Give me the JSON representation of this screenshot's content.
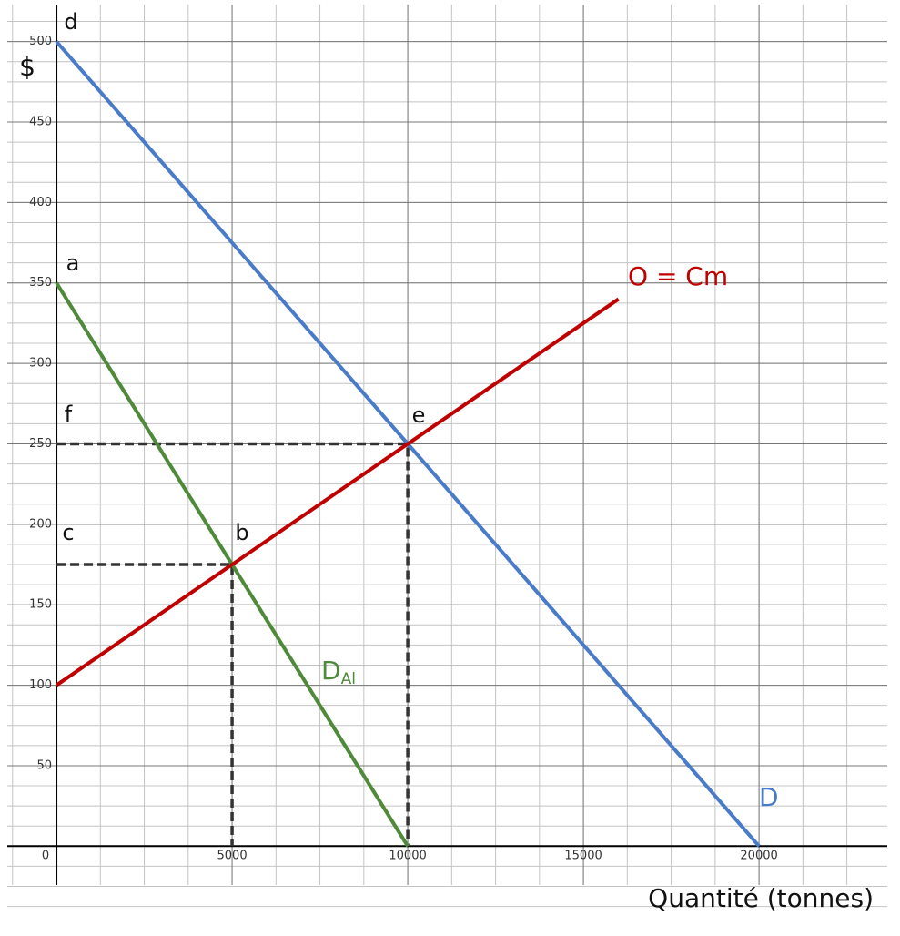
{
  "chart_data": {
    "type": "line",
    "x_label": "Quantité (tonnes)",
    "y_label": "$",
    "xlim": [
      -1400,
      23650
    ],
    "ylim": [
      -40,
      523
    ],
    "xticks": [
      0,
      5000,
      10000,
      15000,
      20000
    ],
    "yticks": [
      50,
      100,
      150,
      200,
      250,
      300,
      350,
      400,
      450,
      500
    ],
    "grid": true,
    "minor_x_step": 1250,
    "minor_y_step": 12.5,
    "series": [
      {
        "name": "D",
        "color": "#4a7bc8",
        "x": [
          0,
          20000
        ],
        "values": [
          500,
          0
        ]
      },
      {
        "name": "D",
        "subscript": "Al",
        "color": "#4e8a3a",
        "x": [
          0,
          10000
        ],
        "values": [
          350,
          0
        ]
      },
      {
        "name": "O = Cm",
        "color": "#c00000",
        "x": [
          0,
          16000
        ],
        "values": [
          100,
          340
        ]
      }
    ],
    "guides": [
      {
        "color": "#333333",
        "x": [
          0,
          10000,
          10000
        ],
        "values": [
          250,
          250,
          0
        ]
      },
      {
        "color": "#333333",
        "x": [
          0,
          5000,
          5000
        ],
        "values": [
          175,
          175,
          0
        ]
      }
    ],
    "annotations": [
      "d",
      "a",
      "f",
      "c",
      "b",
      "e"
    ]
  }
}
